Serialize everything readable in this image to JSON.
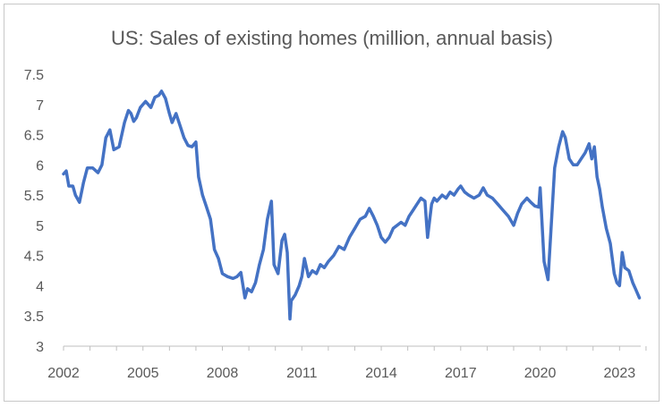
{
  "chart_data": {
    "type": "line",
    "title": "US: Sales of existing homes (million, annual basis)",
    "xlabel": "",
    "ylabel": "",
    "x_tick_labels": [
      "2002",
      "2005",
      "2008",
      "2011",
      "2014",
      "2017",
      "2020",
      "2023"
    ],
    "x_tick_values": [
      2002,
      2005,
      2008,
      2011,
      2014,
      2017,
      2020,
      2023
    ],
    "y_tick_labels": [
      "3",
      "3.5",
      "4",
      "4.5",
      "5",
      "5.5",
      "6",
      "6.5",
      "7",
      "7.5"
    ],
    "y_tick_values": [
      3,
      3.5,
      4,
      4.5,
      5,
      5.5,
      6,
      6.5,
      7,
      7.5
    ],
    "xlim": [
      2002,
      2023.8
    ],
    "ylim": [
      3,
      7.5
    ],
    "grid": false,
    "legend": "none",
    "series": [
      {
        "color": "#4472C4",
        "x": [
          2002.0,
          2002.1,
          2002.2,
          2002.35,
          2002.45,
          2002.6,
          2002.75,
          2002.9,
          2003.1,
          2003.3,
          2003.45,
          2003.6,
          2003.75,
          2003.9,
          2004.1,
          2004.3,
          2004.45,
          2004.55,
          2004.65,
          2004.75,
          2004.9,
          2005.1,
          2005.3,
          2005.45,
          2005.6,
          2005.7,
          2005.85,
          2006.0,
          2006.1,
          2006.25,
          2006.4,
          2006.55,
          2006.7,
          2006.85,
          2007.0,
          2007.1,
          2007.25,
          2007.4,
          2007.55,
          2007.7,
          2007.85,
          2008.0,
          2008.2,
          2008.4,
          2008.55,
          2008.7,
          2008.85,
          2008.95,
          2009.1,
          2009.25,
          2009.4,
          2009.55,
          2009.7,
          2009.85,
          2009.95,
          2010.1,
          2010.25,
          2010.35,
          2010.45,
          2010.55,
          2010.6,
          2010.75,
          2010.9,
          2011.0,
          2011.1,
          2011.25,
          2011.4,
          2011.55,
          2011.7,
          2011.85,
          2012.0,
          2012.2,
          2012.4,
          2012.6,
          2012.8,
          2013.0,
          2013.2,
          2013.4,
          2013.55,
          2013.7,
          2013.85,
          2014.0,
          2014.15,
          2014.3,
          2014.45,
          2014.6,
          2014.75,
          2014.9,
          2015.05,
          2015.2,
          2015.35,
          2015.5,
          2015.65,
          2015.75,
          2015.9,
          2016.0,
          2016.1,
          2016.3,
          2016.45,
          2016.6,
          2016.75,
          2016.9,
          2017.0,
          2017.15,
          2017.3,
          2017.5,
          2017.7,
          2017.85,
          2018.0,
          2018.2,
          2018.4,
          2018.6,
          2018.8,
          2019.0,
          2019.15,
          2019.3,
          2019.5,
          2019.65,
          2019.8,
          2019.95,
          2020.0,
          2020.15,
          2020.3,
          2020.4,
          2020.55,
          2020.7,
          2020.85,
          2020.95,
          2021.1,
          2021.25,
          2021.4,
          2021.55,
          2021.7,
          2021.85,
          2021.95,
          2022.05,
          2022.15,
          2022.25,
          2022.35,
          2022.5,
          2022.65,
          2022.8,
          2022.9,
          2023.0,
          2023.1,
          2023.2,
          2023.35,
          2023.5,
          2023.6,
          2023.75
        ],
        "values": [
          5.85,
          5.9,
          5.65,
          5.65,
          5.5,
          5.38,
          5.7,
          5.95,
          5.95,
          5.87,
          6.0,
          6.45,
          6.58,
          6.25,
          6.3,
          6.7,
          6.9,
          6.85,
          6.72,
          6.78,
          6.95,
          7.05,
          6.95,
          7.12,
          7.15,
          7.22,
          7.1,
          6.85,
          6.7,
          6.85,
          6.65,
          6.45,
          6.32,
          6.3,
          6.38,
          5.8,
          5.5,
          5.3,
          5.1,
          4.6,
          4.45,
          4.2,
          4.15,
          4.12,
          4.15,
          4.22,
          3.8,
          3.95,
          3.9,
          4.05,
          4.35,
          4.6,
          5.1,
          5.4,
          4.35,
          4.2,
          4.75,
          4.85,
          4.55,
          3.45,
          3.75,
          3.85,
          4.0,
          4.15,
          4.45,
          4.15,
          4.25,
          4.2,
          4.35,
          4.3,
          4.4,
          4.5,
          4.65,
          4.6,
          4.8,
          4.95,
          5.1,
          5.15,
          5.28,
          5.15,
          5.0,
          4.8,
          4.72,
          4.8,
          4.95,
          5.0,
          5.05,
          5.0,
          5.15,
          5.25,
          5.35,
          5.45,
          5.4,
          4.8,
          5.35,
          5.45,
          5.4,
          5.5,
          5.45,
          5.55,
          5.5,
          5.6,
          5.65,
          5.55,
          5.5,
          5.45,
          5.5,
          5.62,
          5.5,
          5.45,
          5.35,
          5.25,
          5.15,
          5.0,
          5.2,
          5.35,
          5.45,
          5.38,
          5.32,
          5.3,
          5.62,
          4.4,
          4.1,
          4.85,
          5.95,
          6.3,
          6.55,
          6.45,
          6.1,
          6.0,
          6.0,
          6.1,
          6.2,
          6.35,
          6.1,
          6.3,
          5.8,
          5.6,
          5.3,
          4.95,
          4.7,
          4.2,
          4.05,
          4.0,
          4.55,
          4.3,
          4.25,
          4.05,
          3.95,
          3.8
        ]
      }
    ]
  }
}
